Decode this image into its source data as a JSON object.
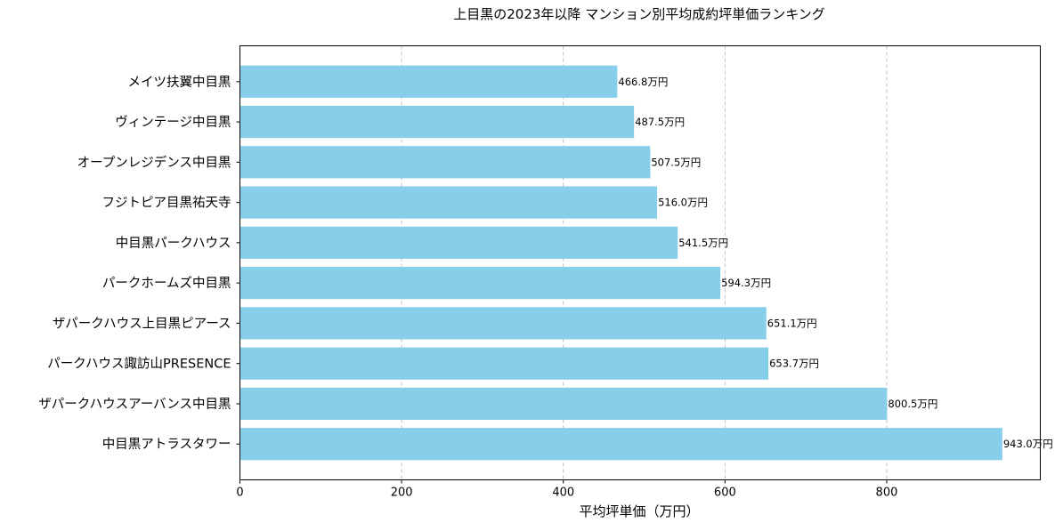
{
  "chart_data": {
    "type": "bar",
    "orientation": "horizontal",
    "title": "上目黒の2023年以降 マンション別平均成約坪単価ランキング",
    "xlabel": "平均坪単価（万円）",
    "ylabel": "",
    "xlim": [
      0,
      990
    ],
    "xticks": [
      0,
      200,
      400,
      600,
      800
    ],
    "grid": "x-dashed",
    "bar_color": "#87CEEB",
    "label_suffix": "万円",
    "categories": [
      "メイツ扶翼中目黒",
      "ヴィンテージ中目黒",
      "オープンレジデンス中目黒",
      "フジトピア目黒祐天寺",
      "中目黒パークハウス",
      "パークホームズ中目黒",
      "ザパークハウス上目黒ピアース",
      "パークハウス諏訪山PRESENCE",
      "ザパークハウスアーバンス中目黒",
      "中目黒アトラスタワー"
    ],
    "values": [
      466.8,
      487.5,
      507.5,
      516.0,
      541.5,
      594.3,
      651.1,
      653.7,
      800.5,
      943.0
    ]
  }
}
